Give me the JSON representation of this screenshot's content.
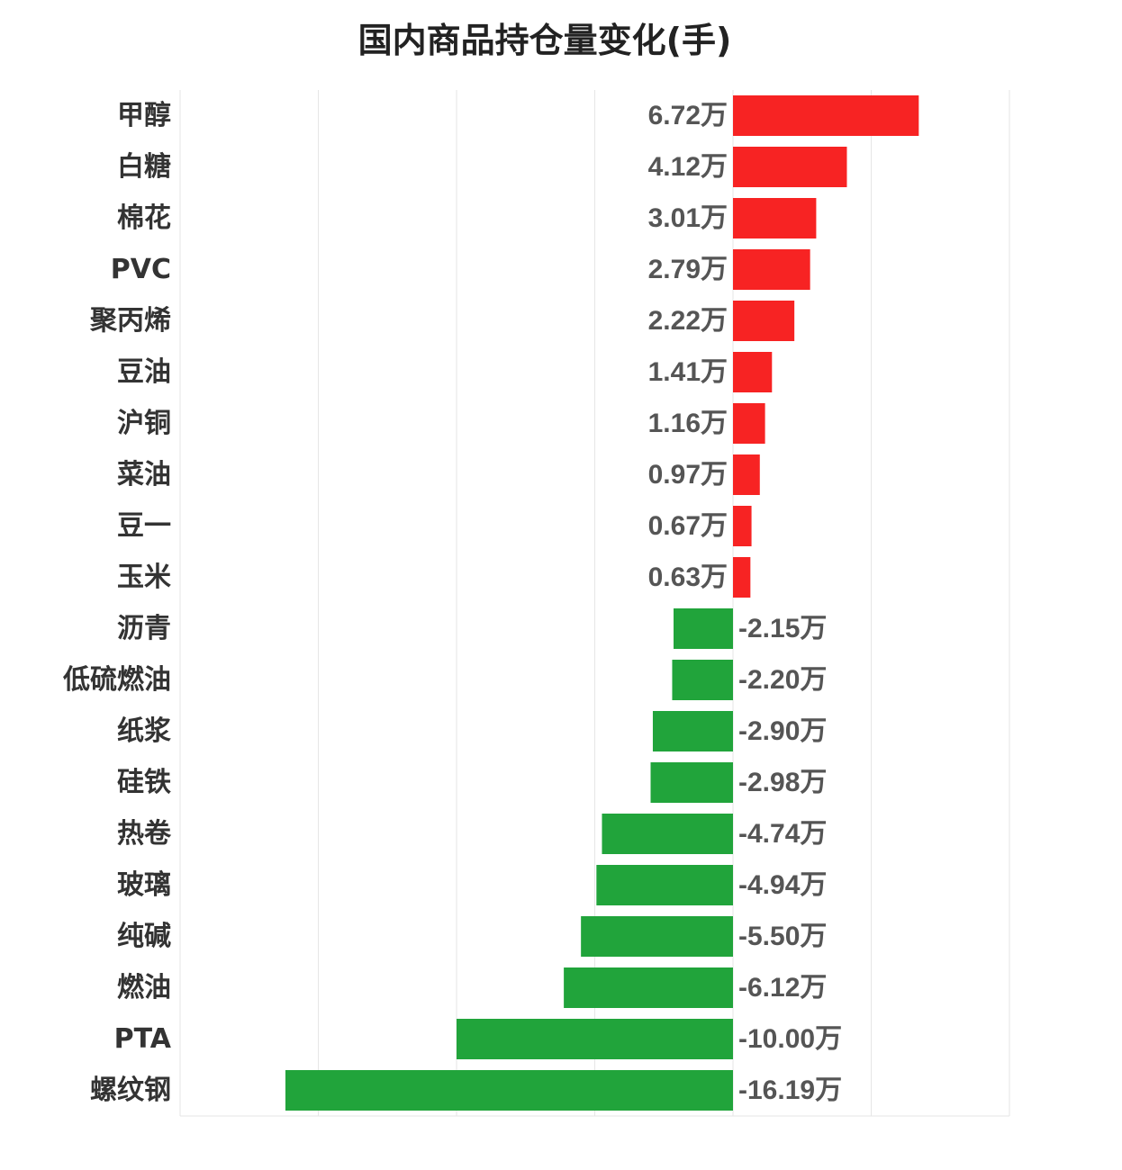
{
  "chart_data": {
    "type": "bar",
    "orientation": "horizontal",
    "title": "国内商品持仓量变化(手)",
    "unit_suffix": "万",
    "categories": [
      "甲醇",
      "白糖",
      "棉花",
      "PVC",
      "聚丙烯",
      "豆油",
      "沪铜",
      "菜油",
      "豆一",
      "玉米",
      "沥青",
      "低硫燃油",
      "纸浆",
      "硅铁",
      "热卷",
      "玻璃",
      "纯碱",
      "燃油",
      "PTA",
      "螺纹钢"
    ],
    "values": [
      6.72,
      4.12,
      3.01,
      2.79,
      2.22,
      1.41,
      1.16,
      0.97,
      0.67,
      0.63,
      -2.15,
      -2.2,
      -2.9,
      -2.98,
      -4.74,
      -4.94,
      -5.5,
      -6.12,
      -10.0,
      -16.19
    ],
    "labels": [
      "6.72万",
      "4.12万",
      "3.01万",
      "2.79万",
      "2.22万",
      "1.41万",
      "1.16万",
      "0.97万",
      "0.67万",
      "0.63万",
      "-2.15万",
      "-2.20万",
      "-2.90万",
      "-2.98万",
      "-4.74万",
      "-4.94万",
      "-5.50万",
      "-6.12万",
      "-10.00万",
      "-16.19万"
    ],
    "xlim": [
      -20,
      10
    ],
    "grid": true,
    "colors": {
      "positive": "#f72323",
      "negative": "#21a43b",
      "grid": "#e6e6e6",
      "text": "#333333",
      "label": "#555555"
    }
  }
}
